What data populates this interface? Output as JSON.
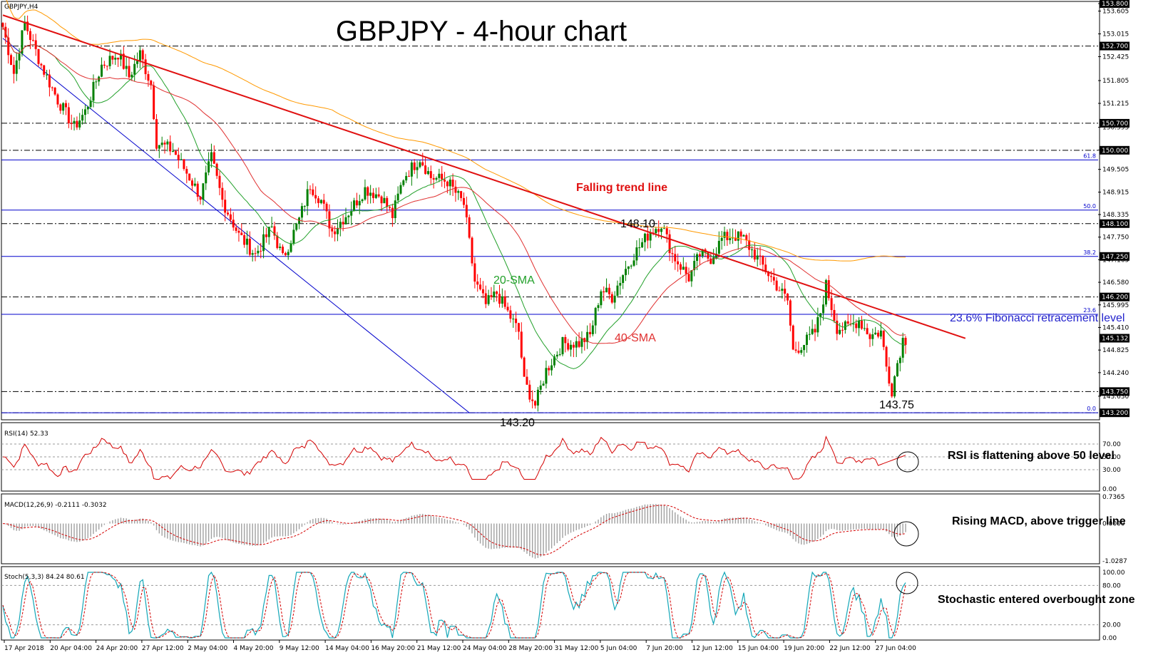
{
  "chart_data": {
    "type": "candlestick",
    "symbol": "GBPJPY,H4",
    "title": "GBPJPY - 4-hour chart",
    "colors": {
      "up": "#008000",
      "down": "#ff0000",
      "sma20": "#22a02a",
      "sma40": "#e03030",
      "sma200": "#ff9900",
      "trend": "#e01010",
      "fib": "#0000cc",
      "support": "#000000",
      "rsi": "#d40000",
      "macd_hist": "#a0a0a0",
      "macd_signal": "#d40000",
      "stoch_main": "#13a7b8",
      "stoch_signal": "#d40000"
    },
    "price_axis": {
      "min": 143.0,
      "max": 153.8,
      "ticks": [
        "153.800",
        "153.605",
        "153.015",
        "152.425",
        "151.805",
        "151.215",
        "150.595",
        "150.005",
        "149.505",
        "148.915",
        "148.335",
        "147.750",
        "147.165",
        "146.580",
        "145.995",
        "145.410",
        "144.825",
        "144.240",
        "143.630"
      ]
    },
    "price_tags": [
      {
        "value": 153.8,
        "label": "153.800"
      },
      {
        "value": 152.7,
        "label": "152.700"
      },
      {
        "value": 150.7,
        "label": "150.700"
      },
      {
        "value": 150.0,
        "label": "150.000"
      },
      {
        "value": 148.1,
        "label": "148.100"
      },
      {
        "value": 147.25,
        "label": "147.250"
      },
      {
        "value": 146.2,
        "label": "146.200"
      },
      {
        "value": 145.132,
        "label": "145.132"
      },
      {
        "value": 143.75,
        "label": "143.750"
      },
      {
        "value": 143.2,
        "label": "143.200"
      }
    ],
    "fibonacci": [
      {
        "level": "61.8",
        "price": 149.75
      },
      {
        "level": "50.0",
        "price": 148.45
      },
      {
        "level": "38.2",
        "price": 147.25
      },
      {
        "level": "23.6",
        "price": 145.75
      },
      {
        "level": "0.0",
        "price": 143.2
      }
    ],
    "support_lines": [
      152.7,
      150.7,
      150.0,
      148.1,
      146.2,
      143.75,
      143.2
    ],
    "x_labels": [
      "17 Apr 2018",
      "20 Apr 04:00",
      "24 Apr 20:00",
      "27 Apr 12:00",
      "2 May 04:00",
      "4 May 20:00",
      "9 May 12:00",
      "14 May 04:00",
      "16 May 20:00",
      "21 May 12:00",
      "24 May 04:00",
      "28 May 20:00",
      "31 May 12:00",
      "5 Jun 04:00",
      "7 Jun 20:00",
      "12 Jun 12:00",
      "15 Jun 04:00",
      "19 Jun 20:00",
      "22 Jun 12:00",
      "27 Jun 04:00"
    ],
    "price_path": [
      [
        0,
        153.2
      ],
      [
        4,
        152.0
      ],
      [
        8,
        153.3
      ],
      [
        14,
        152.2
      ],
      [
        20,
        151.3
      ],
      [
        26,
        150.6
      ],
      [
        30,
        151.0
      ],
      [
        36,
        152.2
      ],
      [
        42,
        152.5
      ],
      [
        46,
        151.9
      ],
      [
        50,
        152.5
      ],
      [
        54,
        151.7
      ],
      [
        56,
        150.2
      ],
      [
        62,
        150.0
      ],
      [
        68,
        149.3
      ],
      [
        72,
        148.8
      ],
      [
        76,
        149.8
      ],
      [
        80,
        148.7
      ],
      [
        86,
        147.8
      ],
      [
        92,
        147.3
      ],
      [
        98,
        148.0
      ],
      [
        102,
        147.2
      ],
      [
        108,
        148.2
      ],
      [
        112,
        149.1
      ],
      [
        116,
        148.7
      ],
      [
        120,
        147.9
      ],
      [
        126,
        148.4
      ],
      [
        132,
        149.0
      ],
      [
        138,
        148.8
      ],
      [
        142,
        148.3
      ],
      [
        146,
        149.3
      ],
      [
        152,
        149.8
      ],
      [
        156,
        149.3
      ],
      [
        162,
        149.2
      ],
      [
        168,
        148.6
      ],
      [
        172,
        146.6
      ],
      [
        176,
        146.0
      ],
      [
        180,
        146.3
      ],
      [
        184,
        145.8
      ],
      [
        188,
        145.3
      ],
      [
        190,
        144.0
      ],
      [
        194,
        143.4
      ],
      [
        198,
        144.3
      ],
      [
        204,
        145.0
      ],
      [
        210,
        145.0
      ],
      [
        214,
        145.2
      ],
      [
        218,
        146.4
      ],
      [
        222,
        146.2
      ],
      [
        226,
        146.8
      ],
      [
        230,
        147.3
      ],
      [
        236,
        147.9
      ],
      [
        240,
        148.1
      ],
      [
        244,
        147.3
      ],
      [
        250,
        146.7
      ],
      [
        254,
        147.3
      ],
      [
        258,
        147.2
      ],
      [
        262,
        147.7
      ],
      [
        266,
        147.8
      ],
      [
        270,
        147.7
      ],
      [
        274,
        147.3
      ],
      [
        278,
        146.9
      ],
      [
        282,
        146.5
      ],
      [
        286,
        146.1
      ],
      [
        288,
        144.8
      ],
      [
        292,
        145.0
      ],
      [
        296,
        145.3
      ],
      [
        298,
        145.8
      ],
      [
        300,
        146.5
      ],
      [
        304,
        145.4
      ],
      [
        308,
        145.4
      ],
      [
        312,
        145.6
      ],
      [
        316,
        145.2
      ],
      [
        320,
        145.3
      ],
      [
        322,
        144.4
      ],
      [
        324,
        143.8
      ],
      [
        326,
        144.5
      ],
      [
        328,
        145.1
      ]
    ],
    "candles_count": 330,
    "sma_periods": [
      20,
      40,
      200
    ],
    "trend_line": {
      "label": "Falling trend line",
      "from": [
        0,
        153.5
      ],
      "to": [
        330,
        145.35
      ]
    },
    "blue_line": {
      "from": [
        0,
        152.9
      ],
      "to": [
        170,
        143.2
      ]
    },
    "annotations": {
      "high1": "148.10",
      "low1": "143.20",
      "low2": "143.75",
      "sma20": "20-SMA",
      "sma40": "40-SMA",
      "fib": "23.6% Fibonacci retracement level",
      "trend": "Falling trend line"
    },
    "rsi": {
      "label": "RSI(14) 52.33",
      "ticks": [
        "70.00",
        "50.00",
        "30.00",
        "0.00"
      ],
      "levels": [
        70,
        50,
        30
      ],
      "note": "RSI is flattening above 50 level"
    },
    "macd": {
      "label": "MACD(12,26,9) -0.2111 -0.3032",
      "ticks": [
        "0.7365",
        "0.0000",
        "-1.0287"
      ],
      "note": "Rising MACD, above trigger line"
    },
    "stoch": {
      "label": "Stoch(5,3,3) 84.24 80.61",
      "ticks": [
        "100.00",
        "80.00",
        "20.00",
        "0.00"
      ],
      "levels": [
        80,
        20
      ],
      "note": "Stochastic entered overbought zone"
    }
  }
}
